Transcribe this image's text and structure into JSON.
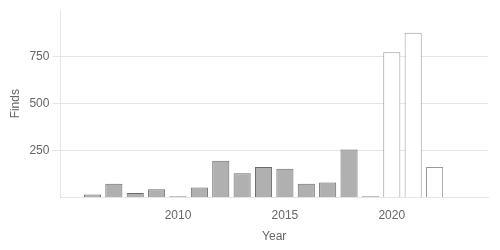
{
  "chart_data": {
    "type": "bar",
    "x": [
      2006,
      2007,
      2008,
      2009,
      2010,
      2011,
      2012,
      2013,
      2014,
      2015,
      2016,
      2017,
      2018,
      2019,
      2020,
      2021,
      2022,
      2023
    ],
    "values": [
      15,
      72,
      22,
      42,
      5,
      52,
      195,
      128,
      162,
      152,
      72,
      78,
      255,
      5,
      775,
      880,
      162,
      0
    ],
    "colors": [
      "#b0b0b0",
      "#b0b0b0",
      "#b0b0b0",
      "#b0b0b0",
      "#b0b0b0",
      "#b0b0b0",
      "#b0b0b0",
      "#b0b0b0",
      "#b0b0b0",
      "#b0b0b0",
      "#b0b0b0",
      "#b0b0b0",
      "#b0b0b0",
      "#b0b0b0",
      "#ffffff",
      "#ffffff",
      "#ffffff",
      "#ffffff"
    ],
    "xlabel": "Year",
    "ylabel": "Finds",
    "xlim": [
      2004.5,
      2024.5
    ],
    "xticks": [
      2010,
      2015,
      2020
    ],
    "ylim": [
      0,
      1000
    ],
    "yticks": [
      250,
      500,
      750
    ],
    "grid": true
  }
}
